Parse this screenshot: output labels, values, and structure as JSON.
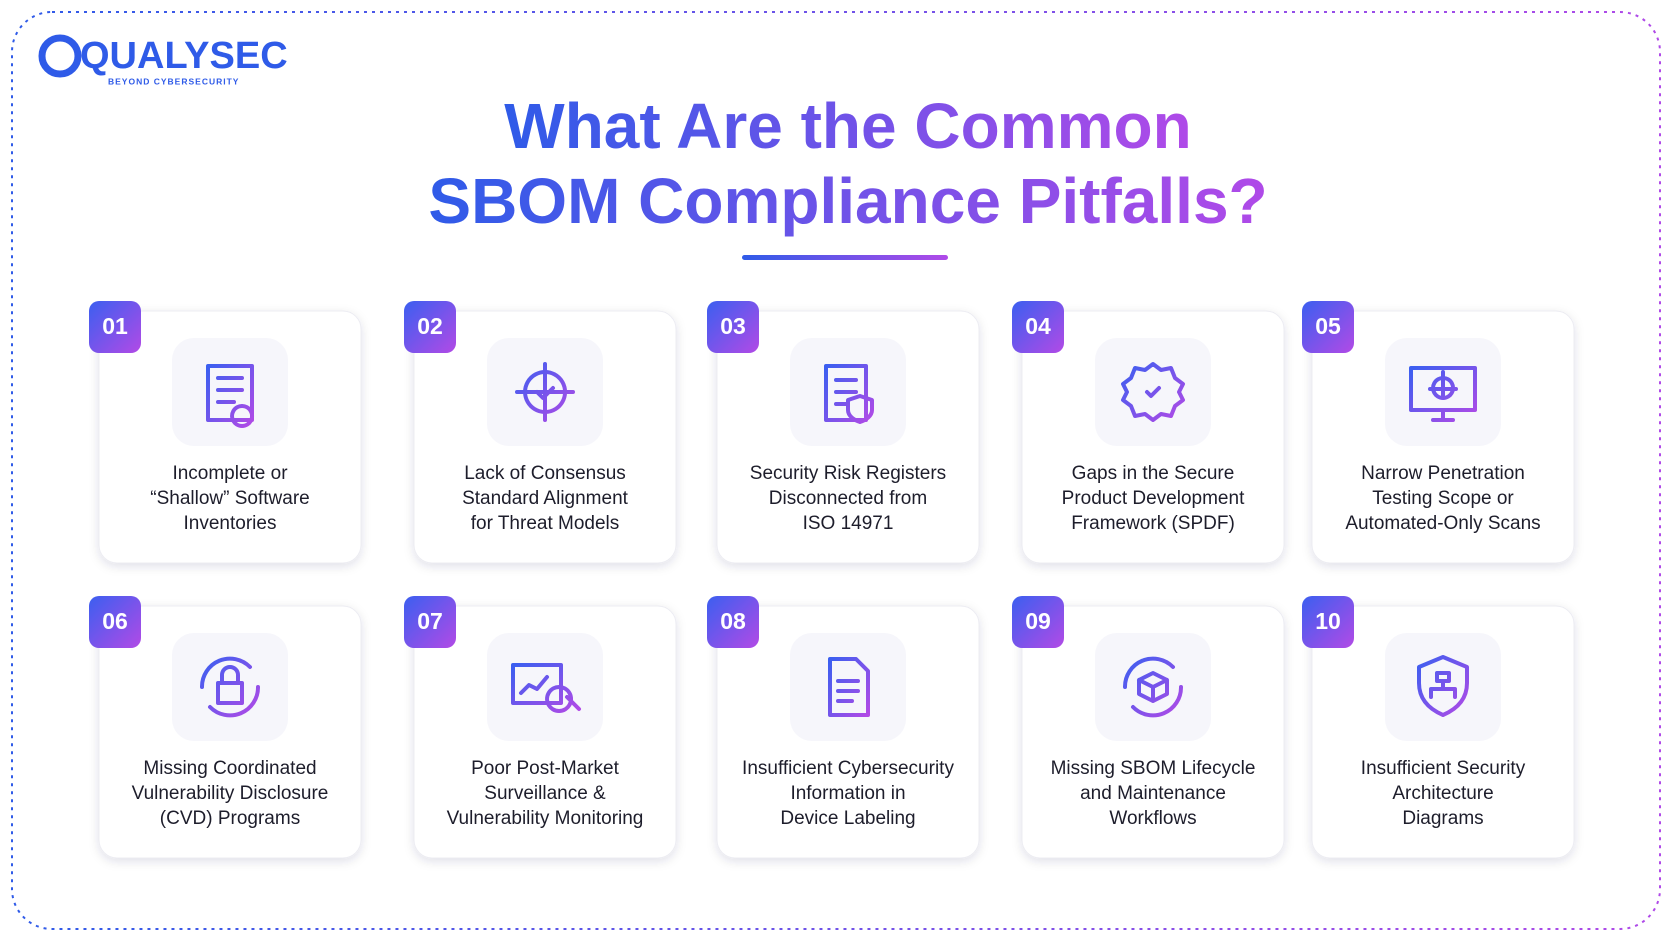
{
  "logo": {
    "name": "QUALYSEC",
    "tagline": "BEYOND CYBERSECURITY"
  },
  "title": {
    "lines": [
      "What Are the Common",
      "SBOM Compliance Pitfalls?"
    ]
  },
  "items": [
    {
      "number": "01",
      "lines": [
        "Incomplete or",
        "“Shallow” Software",
        "Inventories"
      ]
    },
    {
      "number": "02",
      "lines": [
        "Lack of Consensus",
        "Standard Alignment",
        "for Threat Models"
      ]
    },
    {
      "number": "03",
      "lines": [
        "Security Risk Registers",
        "Disconnected from",
        "ISO 14971"
      ]
    },
    {
      "number": "04",
      "lines": [
        "Gaps in the Secure",
        "Product Development",
        "Framework (SPDF)"
      ]
    },
    {
      "number": "05",
      "lines": [
        "Narrow Penetration",
        "Testing Scope or",
        "Automated-Only Scans"
      ]
    },
    {
      "number": "06",
      "lines": [
        "Missing Coordinated",
        "Vulnerability Disclosure",
        "(CVD) Programs"
      ]
    },
    {
      "number": "07",
      "lines": [
        "Poor Post-Market",
        "Surveillance &",
        "Vulnerability Monitoring"
      ]
    },
    {
      "number": "08",
      "lines": [
        "Insufficient Cybersecurity",
        "Information in",
        "Device Labeling"
      ]
    },
    {
      "number": "09",
      "lines": [
        "Missing SBOM Lifecycle",
        "and Maintenance",
        "Workflows"
      ]
    },
    {
      "number": "10",
      "lines": [
        "Insufficient Security",
        "Architecture",
        "Diagrams"
      ]
    }
  ]
}
